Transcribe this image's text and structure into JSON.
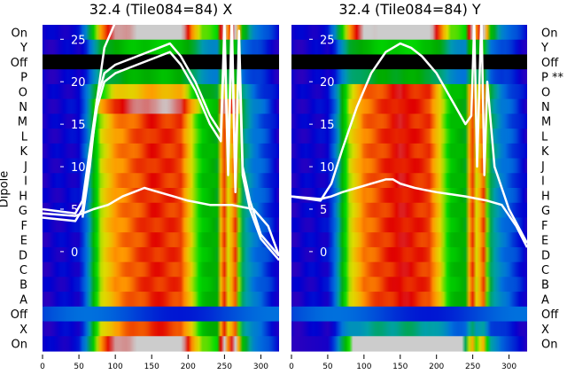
{
  "chart_data": [
    {
      "type": "heatmap",
      "title": "32.4 (Tile084=84) X",
      "ylabel": "Dipole",
      "row_labels": [
        "On",
        "Y",
        "Off",
        "P",
        "O",
        "N",
        "M",
        "L",
        "K",
        "J",
        "I",
        "H",
        "G",
        "F",
        "E",
        "D",
        "C",
        "B",
        "A",
        "Off",
        "X",
        "On"
      ],
      "row_kind": [
        "on",
        "n",
        "offb",
        "n",
        "n",
        "n",
        "n",
        "n",
        "n",
        "n",
        "n",
        "n",
        "n",
        "n",
        "n",
        "n",
        "n",
        "n",
        "n",
        "offl",
        "n",
        "on"
      ],
      "row_scale": [
        1.25,
        0.55,
        0,
        0.5,
        0.85,
        1.15,
        1.0,
        1.0,
        1.0,
        1.0,
        1.0,
        1.0,
        1.0,
        1.0,
        1.0,
        1.0,
        1.0,
        1.0,
        1.0,
        0.3,
        1.0,
        1.25
      ],
      "xlim": [
        0,
        325
      ],
      "xticks": [
        0,
        50,
        100,
        150,
        200,
        250,
        300
      ],
      "inner_ylim": [
        -11.7,
        26.7
      ],
      "inner_yticks": [
        0,
        5,
        10,
        15,
        20,
        25
      ],
      "profile": {
        "x": [
          0,
          50,
          60,
          70,
          80,
          100,
          150,
          190,
          205,
          220,
          240,
          248,
          255,
          265,
          275,
          290,
          310,
          325
        ],
        "v": [
          0.18,
          0.2,
          0.3,
          0.5,
          0.68,
          0.8,
          0.88,
          0.86,
          0.7,
          0.55,
          0.5,
          0.92,
          0.7,
          0.85,
          0.45,
          0.32,
          0.25,
          0.18
        ]
      },
      "series": [
        {
          "name": "trace-upper",
          "x": [
            0,
            45,
            55,
            65,
            75,
            85,
            100,
            130,
            160,
            175,
            190,
            210,
            230,
            245,
            250,
            255,
            260,
            265,
            270,
            275,
            285,
            300,
            325
          ],
          "y": [
            5,
            4.5,
            6,
            12,
            18,
            21,
            22,
            23,
            24,
            24.5,
            23,
            20,
            16,
            14,
            27,
            10,
            28,
            8,
            26,
            10,
            6,
            2,
            -0.5
          ]
        },
        {
          "name": "trace-upper-2",
          "x": [
            0,
            45,
            55,
            65,
            75,
            85,
            100,
            130,
            160,
            175,
            190,
            210,
            230,
            245,
            250,
            255,
            260,
            265,
            270,
            275,
            285,
            300,
            325
          ],
          "y": [
            4,
            3.6,
            5,
            11,
            17,
            20,
            21,
            22,
            23,
            23.5,
            22,
            19,
            15,
            13,
            25,
            9,
            26,
            7,
            24,
            9,
            5,
            1.5,
            -1
          ]
        },
        {
          "name": "trace-lower",
          "x": [
            0,
            45,
            55,
            70,
            90,
            110,
            125,
            140,
            160,
            180,
            200,
            230,
            260,
            290,
            310,
            325
          ],
          "y": [
            4.5,
            4.2,
            4.5,
            5,
            5.5,
            6.5,
            7,
            7.5,
            7,
            6.5,
            6,
            5.5,
            5.5,
            5,
            3,
            -0.5
          ]
        },
        {
          "name": "trace-steep",
          "x": [
            55,
            65,
            75,
            85,
            100
          ],
          "y": [
            4,
            10,
            18,
            24,
            27
          ]
        }
      ]
    },
    {
      "type": "heatmap",
      "title": "32.4 (Tile084=84) Y",
      "row_labels": [
        "On",
        "Y",
        "Off",
        "P **",
        "O",
        "N",
        "M",
        "L",
        "K",
        "J",
        "I",
        "H",
        "G",
        "F",
        "E",
        "D",
        "C",
        "B",
        "A",
        "Off",
        "X",
        "On"
      ],
      "row_kind": [
        "on",
        "n",
        "offb",
        "n",
        "n",
        "n",
        "n",
        "n",
        "n",
        "n",
        "n",
        "n",
        "n",
        "n",
        "n",
        "n",
        "n",
        "n",
        "n",
        "offl",
        "n",
        "onlow"
      ],
      "row_scale": [
        1.25,
        0.55,
        0,
        0.45,
        1.0,
        1.0,
        1.0,
        1.0,
        1.0,
        1.0,
        1.0,
        1.0,
        1.0,
        1.0,
        1.0,
        1.0,
        1.0,
        1.0,
        1.0,
        0.3,
        0.35,
        0.9
      ],
      "xlim": [
        0,
        325
      ],
      "xticks": [
        0,
        50,
        100,
        150,
        200,
        250,
        300
      ],
      "inner_ylim": [
        -11.7,
        26.7
      ],
      "inner_yticks": [
        0,
        5,
        10,
        15,
        20,
        25
      ],
      "profile": {
        "x": [
          0,
          50,
          60,
          70,
          80,
          100,
          150,
          190,
          205,
          220,
          240,
          248,
          255,
          265,
          275,
          290,
          310,
          325
        ],
        "v": [
          0.18,
          0.2,
          0.3,
          0.5,
          0.68,
          0.82,
          0.9,
          0.86,
          0.72,
          0.55,
          0.5,
          0.92,
          0.7,
          0.85,
          0.45,
          0.32,
          0.25,
          0.18
        ]
      },
      "series": [
        {
          "name": "trace-upper",
          "x": [
            0,
            40,
            55,
            70,
            90,
            110,
            130,
            150,
            165,
            180,
            200,
            220,
            240,
            248,
            252,
            256,
            262,
            266,
            270,
            280,
            300,
            325
          ],
          "y": [
            6.5,
            6,
            8,
            12,
            17,
            21,
            23.5,
            24.5,
            24,
            23,
            21,
            18,
            15,
            16,
            27,
            10,
            28,
            9,
            20,
            10,
            5,
            1
          ]
        },
        {
          "name": "trace-lower",
          "x": [
            0,
            40,
            55,
            70,
            90,
            110,
            130,
            140,
            150,
            170,
            200,
            240,
            270,
            290,
            310,
            325
          ],
          "y": [
            6.5,
            6.2,
            6.5,
            7,
            7.5,
            8,
            8.5,
            8.5,
            8,
            7.5,
            7,
            6.5,
            6,
            5.5,
            3,
            0.5
          ]
        }
      ]
    }
  ],
  "colorscale": {
    "stops": [
      0,
      0.1,
      0.2,
      0.3,
      0.4,
      0.5,
      0.6,
      0.7,
      0.8,
      0.9,
      1.0
    ],
    "colors": [
      "#000000",
      "#7000a0",
      "#0000d0",
      "#0070dd",
      "#00a0aa",
      "#00aa00",
      "#00dd00",
      "#dddd00",
      "#ff9900",
      "#e00000",
      "#cccccc"
    ]
  }
}
